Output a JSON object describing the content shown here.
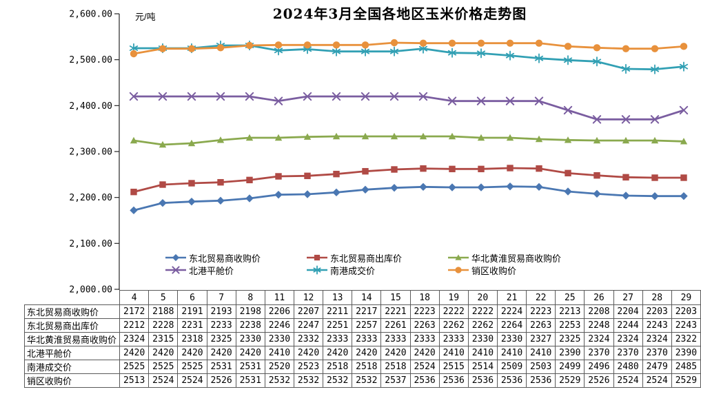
{
  "chart_data": {
    "type": "line",
    "title": "2024年3月全国各地区玉米价格走势图",
    "unit_label": "元/吨",
    "xlabel": "",
    "ylabel": "元/吨",
    "ylim": [
      2000,
      2600
    ],
    "y_tick_step": 100,
    "y_tick_labels": [
      "2,000.00",
      "2,100.00",
      "2,200.00",
      "2,300.00",
      "2,400.00",
      "2,500.00",
      "2,600.00"
    ],
    "grid": false,
    "legend_position": "bottom-inside",
    "x": [
      "4",
      "5",
      "6",
      "7",
      "8",
      "11",
      "12",
      "13",
      "14",
      "15",
      "18",
      "19",
      "20",
      "21",
      "22",
      "25",
      "26",
      "27",
      "28",
      "29"
    ],
    "series": [
      {
        "name": "东北贸易商收购价",
        "color": "#4A77B2",
        "marker": "diamond",
        "values": [
          2172,
          2188,
          2191,
          2193,
          2198,
          2206,
          2207,
          2211,
          2217,
          2221,
          2223,
          2222,
          2222,
          2224,
          2223,
          2213,
          2208,
          2204,
          2203,
          2203
        ]
      },
      {
        "name": "东北贸易商出库价",
        "color": "#B04A45",
        "marker": "square",
        "values": [
          2212,
          2228,
          2231,
          2233,
          2238,
          2246,
          2247,
          2251,
          2257,
          2261,
          2263,
          2262,
          2262,
          2264,
          2263,
          2253,
          2248,
          2244,
          2243,
          2243
        ]
      },
      {
        "name": "华北黄淮贸易商收购价",
        "color": "#8AA94E",
        "marker": "triangle",
        "values": [
          2324,
          2315,
          2318,
          2325,
          2330,
          2330,
          2332,
          2333,
          2333,
          2333,
          2333,
          2333,
          2330,
          2330,
          2327,
          2325,
          2324,
          2324,
          2324,
          2322
        ]
      },
      {
        "name": "北港平舱价",
        "color": "#7A5DA0",
        "marker": "x",
        "values": [
          2420,
          2420,
          2420,
          2420,
          2420,
          2410,
          2420,
          2420,
          2420,
          2420,
          2420,
          2410,
          2410,
          2410,
          2410,
          2390,
          2370,
          2370,
          2370,
          2390
        ]
      },
      {
        "name": "南港成交价",
        "color": "#32A0B4",
        "marker": "asterisk",
        "values": [
          2525,
          2525,
          2525,
          2531,
          2531,
          2520,
          2523,
          2518,
          2518,
          2518,
          2524,
          2515,
          2514,
          2509,
          2503,
          2499,
          2496,
          2480,
          2479,
          2485
        ]
      },
      {
        "name": "销区收购价",
        "color": "#E8913C",
        "marker": "circle",
        "values": [
          2513,
          2524,
          2524,
          2526,
          2531,
          2532,
          2532,
          2532,
          2532,
          2537,
          2536,
          2536,
          2536,
          2536,
          2536,
          2529,
          2526,
          2524,
          2524,
          2529
        ]
      }
    ]
  }
}
